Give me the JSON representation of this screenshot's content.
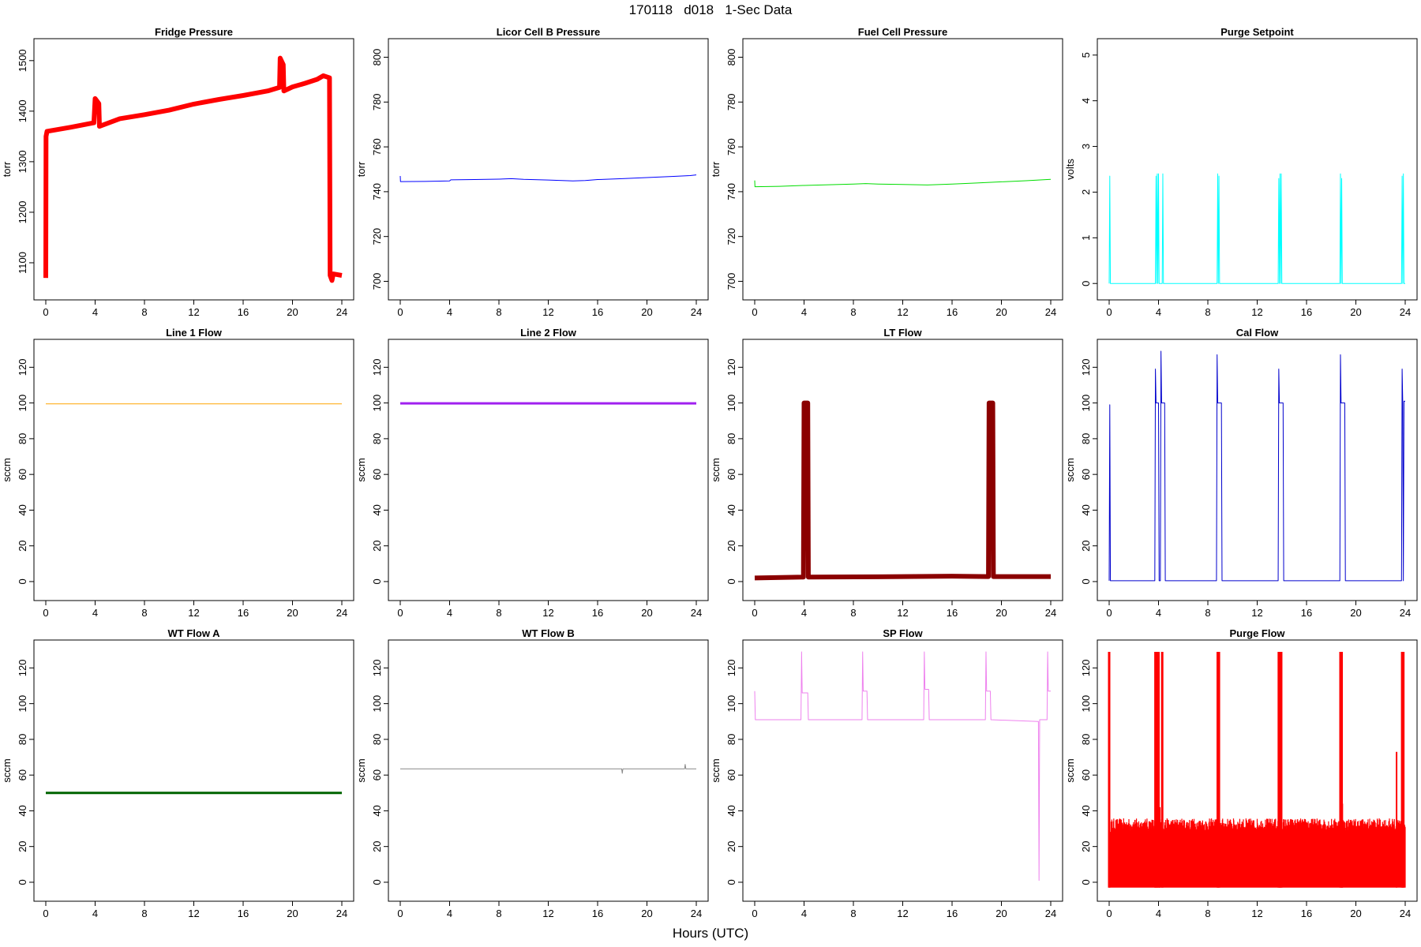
{
  "figure": {
    "title": "170118   d018   1-Sec Data",
    "xlabel": "Hours (UTC)"
  },
  "chart_data": [
    {
      "type": "line",
      "title": "Fridge Pressure",
      "ylabel": "torr",
      "color": "#ff0000",
      "xlim": [
        0,
        24
      ],
      "ylim": [
        1050,
        1520
      ],
      "xticks": [
        0,
        4,
        8,
        12,
        16,
        20,
        24
      ],
      "yticks": [
        1100,
        1200,
        1300,
        1400,
        1500
      ],
      "band": 6,
      "points": [
        [
          0,
          1070
        ],
        [
          0.02,
          1350
        ],
        [
          0.1,
          1360
        ],
        [
          2,
          1368
        ],
        [
          3.9,
          1377
        ],
        [
          4.0,
          1425
        ],
        [
          4.3,
          1415
        ],
        [
          4.35,
          1370
        ],
        [
          6,
          1385
        ],
        [
          8,
          1393
        ],
        [
          10,
          1402
        ],
        [
          12,
          1414
        ],
        [
          14,
          1423
        ],
        [
          16,
          1431
        ],
        [
          18,
          1440
        ],
        [
          18.95,
          1447
        ],
        [
          19.0,
          1505
        ],
        [
          19.25,
          1492
        ],
        [
          19.3,
          1440
        ],
        [
          20,
          1448
        ],
        [
          21,
          1455
        ],
        [
          22,
          1463
        ],
        [
          22.5,
          1470
        ],
        [
          23.0,
          1466
        ],
        [
          23.05,
          1075
        ],
        [
          23.2,
          1065
        ],
        [
          23.3,
          1078
        ],
        [
          24,
          1075
        ]
      ]
    },
    {
      "type": "line",
      "title": "Licor Cell B Pressure",
      "ylabel": "torr",
      "color": "#0000ff",
      "xlim": [
        0,
        24
      ],
      "ylim": [
        697,
        803
      ],
      "xticks": [
        0,
        4,
        8,
        12,
        16,
        20,
        24
      ],
      "yticks": [
        700,
        720,
        740,
        760,
        780,
        800
      ],
      "band": 1,
      "points": [
        [
          0,
          747
        ],
        [
          0.02,
          744.5
        ],
        [
          2,
          744.6
        ],
        [
          4,
          744.8
        ],
        [
          4.1,
          745.3
        ],
        [
          6,
          745.4
        ],
        [
          8,
          745.6
        ],
        [
          9,
          745.8
        ],
        [
          10,
          745.5
        ],
        [
          12,
          745.2
        ],
        [
          14,
          744.8
        ],
        [
          15,
          745
        ],
        [
          16,
          745.4
        ],
        [
          18,
          745.8
        ],
        [
          20,
          746.3
        ],
        [
          22,
          746.8
        ],
        [
          23.5,
          747.2
        ],
        [
          24,
          747.5
        ]
      ]
    },
    {
      "type": "line",
      "title": "Fuel Cell Pressure",
      "ylabel": "torr",
      "color": "#00dd00",
      "xlim": [
        0,
        24
      ],
      "ylim": [
        697,
        803
      ],
      "xticks": [
        0,
        4,
        8,
        12,
        16,
        20,
        24
      ],
      "yticks": [
        700,
        720,
        740,
        760,
        780,
        800
      ],
      "band": 1,
      "points": [
        [
          0,
          745
        ],
        [
          0.02,
          742.2
        ],
        [
          2,
          742.4
        ],
        [
          4,
          742.8
        ],
        [
          6,
          743.1
        ],
        [
          8,
          743.4
        ],
        [
          9,
          743.6
        ],
        [
          10,
          743.4
        ],
        [
          12,
          743.2
        ],
        [
          14,
          743.0
        ],
        [
          16,
          743.4
        ],
        [
          18,
          743.9
        ],
        [
          20,
          744.4
        ],
        [
          22,
          744.9
        ],
        [
          24,
          745.5
        ]
      ]
    },
    {
      "type": "line",
      "title": "Purge Setpoint",
      "ylabel": "volts",
      "color": "#00ffff",
      "xlim": [
        0,
        24
      ],
      "ylim": [
        -0.1,
        5.1
      ],
      "xticks": [
        0,
        4,
        8,
        12,
        16,
        20,
        24
      ],
      "yticks": [
        0,
        1,
        2,
        3,
        4,
        5
      ],
      "band": 1,
      "points": [
        [
          0,
          0
        ],
        [
          0.05,
          2.35
        ],
        [
          0.1,
          0
        ],
        [
          3.75,
          0
        ],
        [
          3.8,
          2.35
        ],
        [
          3.85,
          0
        ],
        [
          3.9,
          2.4
        ],
        [
          3.95,
          0
        ],
        [
          4.0,
          2.4
        ],
        [
          4.05,
          0
        ],
        [
          4.3,
          0
        ],
        [
          4.35,
          2.4
        ],
        [
          4.4,
          0
        ],
        [
          8.75,
          0
        ],
        [
          8.8,
          2.4
        ],
        [
          8.85,
          0
        ],
        [
          8.9,
          2.35
        ],
        [
          8.95,
          0
        ],
        [
          13.7,
          0
        ],
        [
          13.75,
          2.3
        ],
        [
          13.8,
          0
        ],
        [
          13.85,
          2.4
        ],
        [
          13.9,
          0
        ],
        [
          13.95,
          2.4
        ],
        [
          14.0,
          0
        ],
        [
          18.7,
          0
        ],
        [
          18.75,
          2.4
        ],
        [
          18.8,
          0
        ],
        [
          18.85,
          2.3
        ],
        [
          18.9,
          0
        ],
        [
          23.7,
          0
        ],
        [
          23.75,
          2.35
        ],
        [
          23.8,
          0
        ],
        [
          23.85,
          2.4
        ],
        [
          23.9,
          0
        ],
        [
          24,
          0
        ]
      ]
    },
    {
      "type": "line",
      "title": "Line 1 Flow",
      "ylabel": "sccm",
      "color": "#ffa500",
      "xlim": [
        0,
        24
      ],
      "ylim": [
        -4,
        129
      ],
      "xticks": [
        0,
        4,
        8,
        12,
        16,
        20,
        24
      ],
      "yticks": [
        0,
        20,
        40,
        60,
        80,
        100,
        120
      ],
      "band": 1,
      "points": [
        [
          0,
          99.5
        ],
        [
          24,
          99.5
        ]
      ]
    },
    {
      "type": "line",
      "title": "Line 2 Flow",
      "ylabel": "sccm",
      "color": "#a020f0",
      "xlim": [
        0,
        24
      ],
      "ylim": [
        -4,
        129
      ],
      "xticks": [
        0,
        4,
        8,
        12,
        16,
        20,
        24
      ],
      "yticks": [
        0,
        20,
        40,
        60,
        80,
        100,
        120
      ],
      "band": 3,
      "points": [
        [
          0,
          99.8
        ],
        [
          24,
          99.8
        ]
      ]
    },
    {
      "type": "line",
      "title": "LT Flow",
      "ylabel": "sccm",
      "color": "#8b0000",
      "xlim": [
        0,
        24
      ],
      "ylim": [
        -4,
        129
      ],
      "xticks": [
        0,
        4,
        8,
        12,
        16,
        20,
        24
      ],
      "yticks": [
        0,
        20,
        40,
        60,
        80,
        100,
        120
      ],
      "band": 6,
      "points": [
        [
          0,
          2
        ],
        [
          3.95,
          2.5
        ],
        [
          4.0,
          100
        ],
        [
          4.3,
          100
        ],
        [
          4.35,
          2.5
        ],
        [
          10,
          2.7
        ],
        [
          16,
          3
        ],
        [
          18.95,
          2.8
        ],
        [
          19.0,
          100
        ],
        [
          19.3,
          100
        ],
        [
          19.35,
          2.8
        ],
        [
          24,
          2.8
        ]
      ]
    },
    {
      "type": "line",
      "title": "Cal Flow",
      "ylabel": "sccm",
      "color": "#0000cd",
      "xlim": [
        0,
        24
      ],
      "ylim": [
        -4,
        129
      ],
      "xticks": [
        0,
        4,
        8,
        12,
        16,
        20,
        24
      ],
      "yticks": [
        0,
        20,
        40,
        60,
        80,
        100,
        120
      ],
      "band": 1,
      "points": [
        [
          0,
          0.5
        ],
        [
          0.05,
          99
        ],
        [
          0.1,
          0.5
        ],
        [
          3.7,
          0.5
        ],
        [
          3.75,
          119
        ],
        [
          3.8,
          100
        ],
        [
          4.0,
          100
        ],
        [
          4.05,
          0.5
        ],
        [
          4.15,
          0.5
        ],
        [
          4.2,
          129
        ],
        [
          4.25,
          100
        ],
        [
          4.5,
          100
        ],
        [
          4.55,
          0.5
        ],
        [
          8.7,
          0.5
        ],
        [
          8.75,
          127
        ],
        [
          8.8,
          100
        ],
        [
          9.1,
          100
        ],
        [
          9.15,
          0.5
        ],
        [
          13.7,
          0.5
        ],
        [
          13.75,
          119
        ],
        [
          13.8,
          100
        ],
        [
          14.1,
          100
        ],
        [
          14.15,
          0.5
        ],
        [
          18.7,
          0.5
        ],
        [
          18.75,
          127
        ],
        [
          18.8,
          100
        ],
        [
          19.1,
          100
        ],
        [
          19.15,
          0.5
        ],
        [
          23.7,
          0.5
        ],
        [
          23.75,
          119
        ],
        [
          23.8,
          100
        ],
        [
          23.85,
          0.5
        ],
        [
          23.9,
          101
        ],
        [
          24,
          101
        ]
      ]
    },
    {
      "type": "line",
      "title": "WT Flow A",
      "ylabel": "sccm",
      "color": "#006400",
      "xlim": [
        0,
        24
      ],
      "ylim": [
        -4,
        129
      ],
      "xticks": [
        0,
        4,
        8,
        12,
        16,
        20,
        24
      ],
      "yticks": [
        0,
        20,
        40,
        60,
        80,
        100,
        120
      ],
      "band": 3,
      "points": [
        [
          0,
          50
        ],
        [
          24,
          50
        ]
      ]
    },
    {
      "type": "line",
      "title": "WT Flow B",
      "ylabel": "sccm",
      "color": "#888888",
      "xlim": [
        0,
        24
      ],
      "ylim": [
        -4,
        129
      ],
      "xticks": [
        0,
        4,
        8,
        12,
        16,
        20,
        24
      ],
      "yticks": [
        0,
        20,
        40,
        60,
        80,
        100,
        120
      ],
      "band": 1,
      "points": [
        [
          0,
          63.5
        ],
        [
          8,
          63.5
        ],
        [
          16,
          63.5
        ],
        [
          17.95,
          63.5
        ],
        [
          18.0,
          61
        ],
        [
          18.05,
          63.5
        ],
        [
          23.05,
          63.5
        ],
        [
          23.1,
          66
        ],
        [
          23.15,
          63.5
        ],
        [
          24,
          63.5
        ]
      ]
    },
    {
      "type": "line",
      "title": "SP Flow",
      "ylabel": "sccm",
      "color": "#ee82ee",
      "xlim": [
        0,
        24
      ],
      "ylim": [
        -4,
        129
      ],
      "xticks": [
        0,
        4,
        8,
        12,
        16,
        20,
        24
      ],
      "yticks": [
        0,
        20,
        40,
        60,
        80,
        100,
        120
      ],
      "band": 1,
      "points": [
        [
          0,
          107
        ],
        [
          0.05,
          91
        ],
        [
          3.75,
          91
        ],
        [
          3.8,
          129
        ],
        [
          3.85,
          106
        ],
        [
          4.3,
          106
        ],
        [
          4.35,
          91
        ],
        [
          8.7,
          91
        ],
        [
          8.75,
          129
        ],
        [
          8.8,
          107
        ],
        [
          9.1,
          107
        ],
        [
          9.15,
          91
        ],
        [
          13.7,
          91
        ],
        [
          13.75,
          129
        ],
        [
          13.8,
          108
        ],
        [
          14.1,
          108
        ],
        [
          14.15,
          91
        ],
        [
          18.7,
          91
        ],
        [
          18.75,
          129
        ],
        [
          18.8,
          107
        ],
        [
          19.1,
          107
        ],
        [
          19.15,
          91
        ],
        [
          23.0,
          90
        ],
        [
          23.05,
          1
        ],
        [
          23.1,
          91
        ],
        [
          23.7,
          91
        ],
        [
          23.75,
          129
        ],
        [
          23.8,
          107
        ],
        [
          24,
          107
        ]
      ]
    },
    {
      "type": "line",
      "title": "Purge Flow",
      "ylabel": "sccm",
      "color": "#ff0000",
      "xlim": [
        0,
        24
      ],
      "ylim": [
        -4,
        129
      ],
      "xticks": [
        0,
        4,
        8,
        12,
        16,
        20,
        24
      ],
      "yticks": [
        0,
        20,
        40,
        60,
        80,
        100,
        120
      ],
      "band": 1,
      "noise": {
        "low": -3,
        "high": 31,
        "peak": 36
      },
      "spikes": [
        0.0,
        3.75,
        3.85,
        4.0,
        4.3,
        8.8,
        8.9,
        13.75,
        13.85,
        13.95,
        18.75,
        18.85,
        23.75,
        23.85
      ],
      "bumps": [
        [
          4.1,
          42
        ],
        [
          18.9,
          44
        ],
        [
          23.3,
          73
        ]
      ]
    }
  ]
}
